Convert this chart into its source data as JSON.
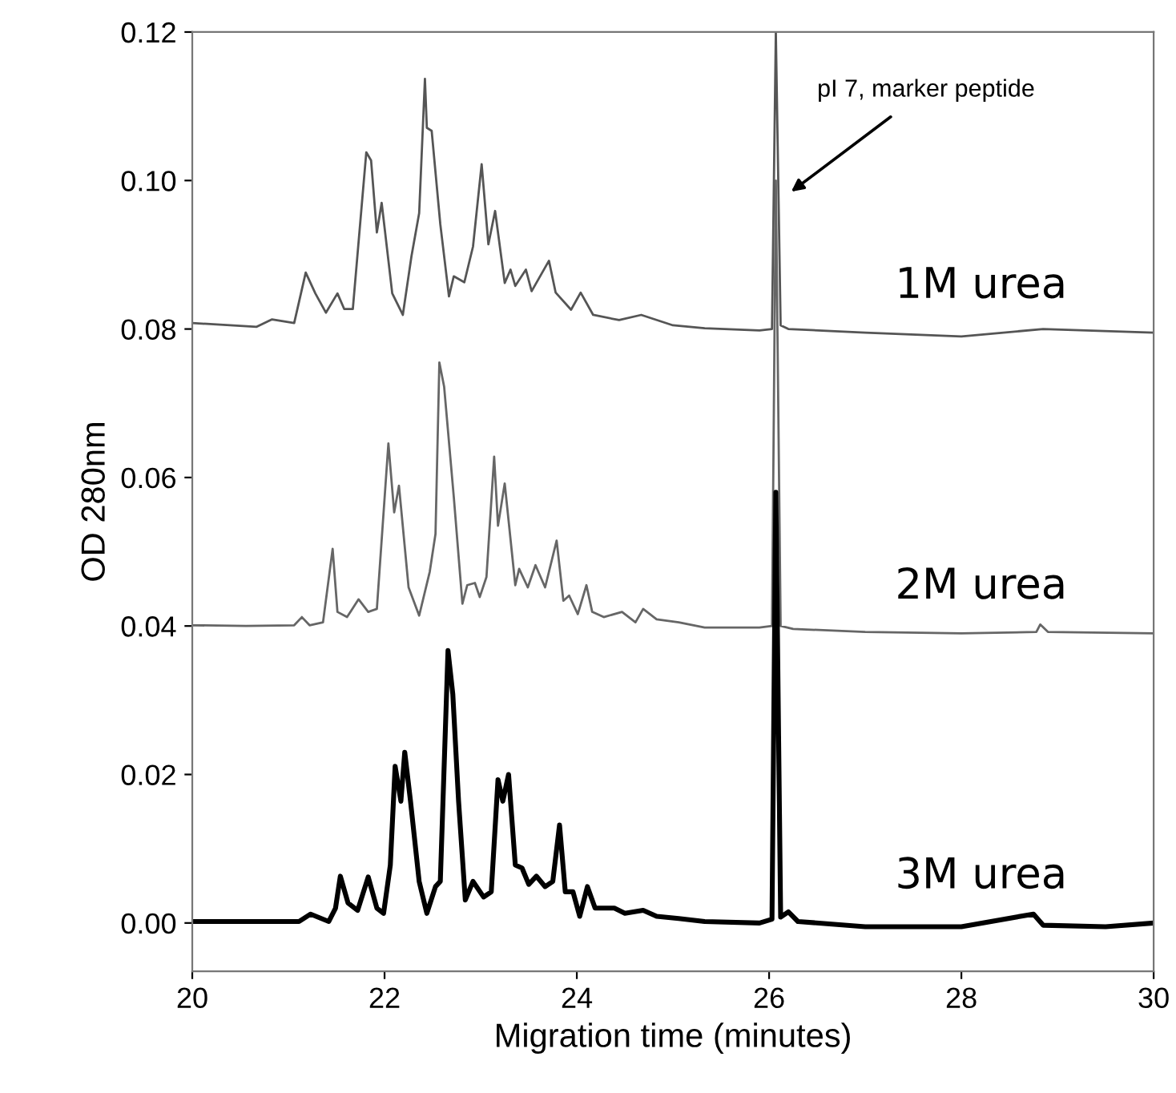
{
  "chart_data": {
    "type": "line",
    "xlabel": "Migration time (minutes)",
    "ylabel": "OD 280nm",
    "xlim": [
      20,
      30
    ],
    "xticks": [
      20,
      22,
      24,
      26,
      28,
      30
    ],
    "ylim": [
      -0.0065,
      0.12
    ],
    "yticks": [
      {
        "value": 0,
        "label": "0.00"
      },
      {
        "value": 0.02,
        "label": "0.02"
      },
      {
        "value": 0.04,
        "label": "0.04"
      },
      {
        "value": 0.06,
        "label": "0.06"
      },
      {
        "value": 0.08,
        "label": "0.08"
      },
      {
        "value": 0.1,
        "label": "0.10"
      },
      {
        "value": 0.12,
        "label": "0.12"
      }
    ],
    "grid": false,
    "legend": false,
    "marker": "none",
    "line_style": "solid",
    "annotations": [
      "pI 7, marker peptide"
    ],
    "series": [
      {
        "name": "1M urea",
        "color": "#555555",
        "x": [
          20.0,
          20.67,
          20.83,
          21.06,
          21.18,
          21.28,
          21.39,
          21.51,
          21.58,
          21.67,
          21.81,
          21.86,
          21.92,
          21.97,
          22.08,
          22.19,
          22.28,
          22.36,
          22.42,
          22.44,
          22.49,
          22.58,
          22.67,
          22.72,
          22.83,
          22.92,
          23.01,
          23.08,
          23.15,
          23.25,
          23.31,
          23.36,
          23.47,
          23.53,
          23.71,
          23.78,
          23.94,
          24.04,
          24.17,
          24.44,
          24.67,
          25.0,
          25.33,
          25.9,
          26.03,
          26.07,
          26.12,
          26.2,
          27.0,
          28.0,
          28.85,
          30.0
        ],
        "values": [
          0.0808,
          0.0803,
          0.0813,
          0.0808,
          0.0876,
          0.0848,
          0.0822,
          0.0848,
          0.0827,
          0.0827,
          0.1038,
          0.1027,
          0.093,
          0.097,
          0.0848,
          0.0819,
          0.0898,
          0.0956,
          0.1137,
          0.1071,
          0.1067,
          0.0941,
          0.0844,
          0.0871,
          0.0863,
          0.0911,
          0.1022,
          0.0914,
          0.0959,
          0.0862,
          0.088,
          0.0858,
          0.088,
          0.0851,
          0.0892,
          0.0849,
          0.0826,
          0.0849,
          0.0819,
          0.0812,
          0.0819,
          0.0805,
          0.0801,
          0.0798,
          0.08,
          0.12,
          0.0805,
          0.08,
          0.0795,
          0.079,
          0.08,
          0.0795
        ]
      },
      {
        "name": "2M urea",
        "color": "#666666",
        "x": [
          20.0,
          20.56,
          21.06,
          21.14,
          21.22,
          21.36,
          21.46,
          21.51,
          21.61,
          21.73,
          21.83,
          21.92,
          22.04,
          22.1,
          22.15,
          22.25,
          22.36,
          22.47,
          22.53,
          22.57,
          22.62,
          22.72,
          22.81,
          22.86,
          22.94,
          22.99,
          23.06,
          23.14,
          23.18,
          23.25,
          23.36,
          23.4,
          23.49,
          23.57,
          23.67,
          23.79,
          23.86,
          23.92,
          24.01,
          24.1,
          24.16,
          24.28,
          24.47,
          24.61,
          24.69,
          24.83,
          25.06,
          25.33,
          25.9,
          26.03,
          26.07,
          26.12,
          26.25,
          27.0,
          28.0,
          28.78,
          28.82,
          28.9,
          30.0
        ],
        "values": [
          0.0401,
          0.04,
          0.0401,
          0.0412,
          0.0401,
          0.0405,
          0.0504,
          0.0419,
          0.0412,
          0.0436,
          0.0419,
          0.0423,
          0.0646,
          0.0553,
          0.0589,
          0.0452,
          0.0414,
          0.0473,
          0.0524,
          0.0755,
          0.0722,
          0.0574,
          0.043,
          0.0455,
          0.0458,
          0.0439,
          0.0466,
          0.0628,
          0.0535,
          0.0592,
          0.0455,
          0.0477,
          0.0452,
          0.0482,
          0.0452,
          0.0515,
          0.0434,
          0.0441,
          0.0416,
          0.0455,
          0.0419,
          0.0412,
          0.0419,
          0.0405,
          0.0423,
          0.0409,
          0.0405,
          0.0398,
          0.0398,
          0.04,
          0.1,
          0.04,
          0.0396,
          0.0392,
          0.039,
          0.0392,
          0.0402,
          0.0392,
          0.039
        ]
      },
      {
        "name": "3M urea",
        "color": "#000000",
        "x": [
          20.0,
          21.11,
          21.23,
          21.42,
          21.49,
          21.54,
          21.62,
          21.72,
          21.83,
          21.92,
          21.99,
          22.06,
          22.11,
          22.17,
          22.21,
          22.27,
          22.36,
          22.44,
          22.53,
          22.58,
          22.66,
          22.71,
          22.77,
          22.84,
          22.92,
          23.03,
          23.11,
          23.18,
          23.23,
          23.29,
          23.36,
          23.43,
          23.5,
          23.58,
          23.67,
          23.75,
          23.82,
          23.88,
          23.96,
          24.03,
          24.11,
          24.19,
          24.39,
          24.5,
          24.69,
          24.83,
          25.06,
          25.33,
          25.9,
          26.03,
          26.07,
          26.12,
          26.2,
          26.3,
          27.0,
          28.0,
          28.75,
          28.85,
          29.5,
          30.0
        ],
        "values": [
          0.0002,
          0.0002,
          0.0012,
          0.0002,
          0.002,
          0.0063,
          0.0027,
          0.0017,
          0.0062,
          0.002,
          0.0013,
          0.0078,
          0.0211,
          0.0164,
          0.023,
          0.0164,
          0.0056,
          0.0013,
          0.0049,
          0.0056,
          0.0367,
          0.0308,
          0.0164,
          0.0031,
          0.0056,
          0.0035,
          0.0042,
          0.0193,
          0.0164,
          0.02,
          0.0078,
          0.0074,
          0.0052,
          0.0063,
          0.0049,
          0.0056,
          0.0132,
          0.0042,
          0.0042,
          0.0009,
          0.0049,
          0.002,
          0.002,
          0.0013,
          0.0017,
          0.0009,
          0.0006,
          0.0002,
          0.0,
          0.0005,
          0.058,
          0.0008,
          0.0015,
          0.0002,
          -0.0005,
          -0.0005,
          0.0012,
          -0.0003,
          -0.0005,
          0.0
        ]
      }
    ]
  }
}
